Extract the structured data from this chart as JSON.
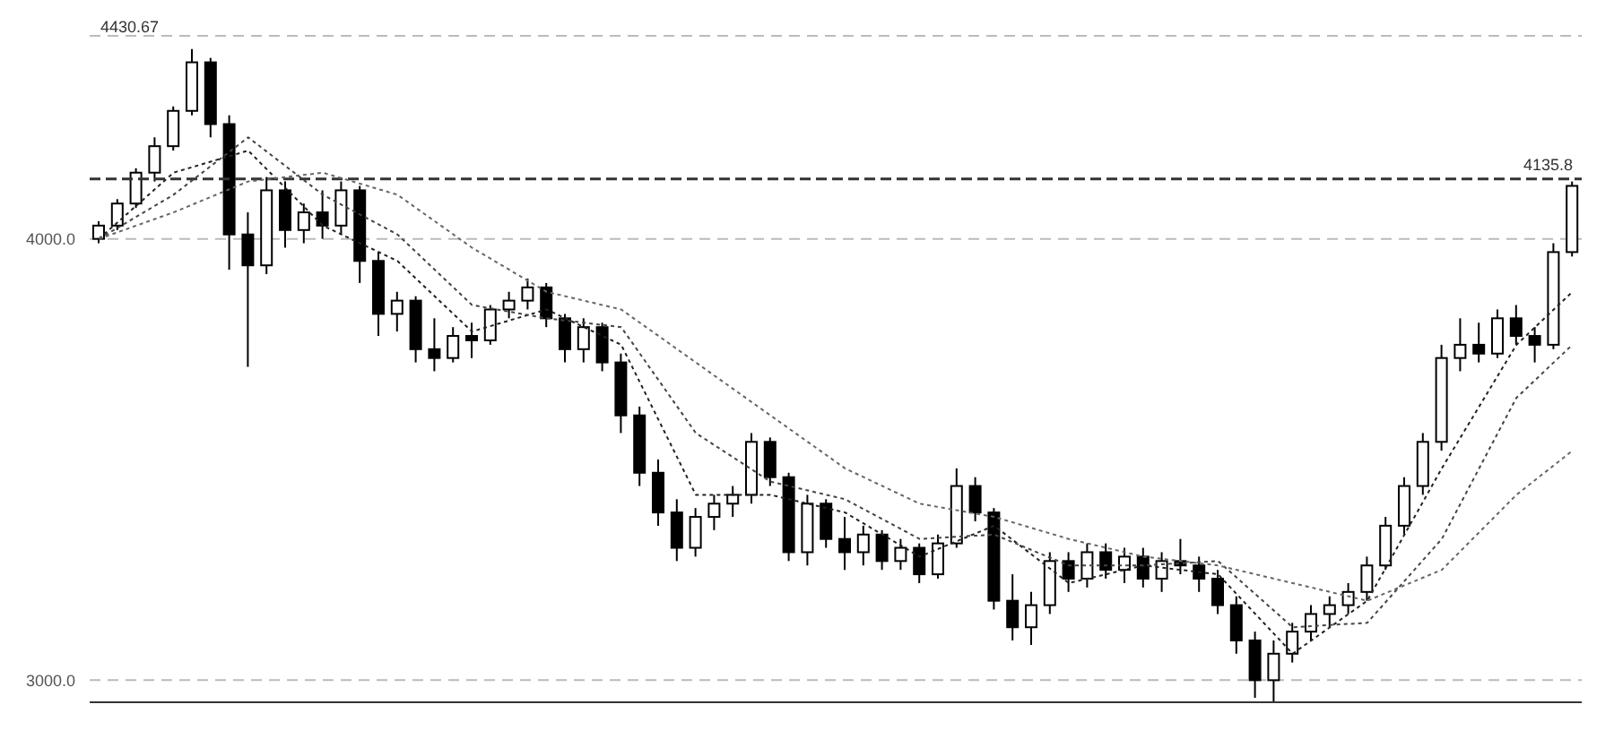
{
  "chart_data": {
    "type": "candlestick",
    "categories": [
      null,
      null,
      null,
      null,
      null,
      null,
      null,
      null,
      null,
      null,
      null,
      null,
      null,
      null,
      null,
      null,
      null,
      null,
      null,
      null,
      null,
      null,
      null,
      null,
      null,
      null,
      null,
      null,
      null,
      null,
      null,
      null,
      null,
      null,
      null,
      null,
      null,
      null,
      null,
      null,
      null,
      null,
      null,
      null,
      null,
      null,
      null,
      null,
      null,
      null,
      null,
      null,
      null,
      null,
      null,
      null,
      null,
      null,
      null,
      null,
      null,
      null,
      null,
      null,
      null,
      null,
      null,
      null,
      null,
      null,
      null,
      null,
      null,
      null,
      null,
      null,
      null,
      null,
      null,
      null
    ],
    "color": "#000000",
    "ohlc": [
      [
        4000,
        4040,
        3990,
        4030
      ],
      [
        4030,
        4090,
        4020,
        4080
      ],
      [
        4080,
        4160,
        4070,
        4150
      ],
      [
        4150,
        4230,
        4130,
        4210
      ],
      [
        4210,
        4300,
        4200,
        4290
      ],
      [
        4290,
        4430,
        4280,
        4400
      ],
      [
        4400,
        4410,
        4230,
        4260
      ],
      [
        4260,
        4280,
        3930,
        4010
      ],
      [
        4010,
        4060,
        3710,
        3940
      ],
      [
        3940,
        4140,
        3920,
        4110
      ],
      [
        4110,
        4130,
        3980,
        4020
      ],
      [
        4020,
        4080,
        3990,
        4060
      ],
      [
        4060,
        4110,
        4000,
        4030
      ],
      [
        4030,
        4130,
        4010,
        4110
      ],
      [
        4110,
        4120,
        3900,
        3950
      ],
      [
        3950,
        3970,
        3780,
        3830
      ],
      [
        3830,
        3880,
        3790,
        3860
      ],
      [
        3860,
        3870,
        3720,
        3750
      ],
      [
        3750,
        3820,
        3700,
        3730
      ],
      [
        3730,
        3800,
        3720,
        3780
      ],
      [
        3780,
        3810,
        3730,
        3770
      ],
      [
        3770,
        3850,
        3760,
        3840
      ],
      [
        3840,
        3880,
        3820,
        3860
      ],
      [
        3860,
        3910,
        3840,
        3890
      ],
      [
        3890,
        3900,
        3800,
        3820
      ],
      [
        3820,
        3830,
        3720,
        3750
      ],
      [
        3750,
        3820,
        3720,
        3800
      ],
      [
        3800,
        3810,
        3700,
        3720
      ],
      [
        3720,
        3740,
        3560,
        3600
      ],
      [
        3600,
        3620,
        3440,
        3470
      ],
      [
        3470,
        3500,
        3350,
        3380
      ],
      [
        3380,
        3410,
        3270,
        3300
      ],
      [
        3300,
        3390,
        3280,
        3370
      ],
      [
        3370,
        3420,
        3340,
        3400
      ],
      [
        3400,
        3440,
        3370,
        3420
      ],
      [
        3420,
        3560,
        3400,
        3540
      ],
      [
        3540,
        3550,
        3440,
        3460
      ],
      [
        3460,
        3470,
        3270,
        3290
      ],
      [
        3290,
        3420,
        3260,
        3400
      ],
      [
        3400,
        3410,
        3300,
        3320
      ],
      [
        3320,
        3370,
        3250,
        3290
      ],
      [
        3290,
        3350,
        3260,
        3330
      ],
      [
        3330,
        3340,
        3250,
        3270
      ],
      [
        3270,
        3320,
        3250,
        3300
      ],
      [
        3300,
        3310,
        3220,
        3240
      ],
      [
        3240,
        3330,
        3230,
        3310
      ],
      [
        3310,
        3480,
        3300,
        3440
      ],
      [
        3440,
        3460,
        3360,
        3380
      ],
      [
        3380,
        3390,
        3160,
        3180
      ],
      [
        3180,
        3240,
        3090,
        3120
      ],
      [
        3120,
        3200,
        3080,
        3170
      ],
      [
        3170,
        3290,
        3150,
        3270
      ],
      [
        3270,
        3290,
        3200,
        3230
      ],
      [
        3230,
        3310,
        3210,
        3290
      ],
      [
        3290,
        3310,
        3230,
        3250
      ],
      [
        3250,
        3300,
        3220,
        3280
      ],
      [
        3280,
        3300,
        3210,
        3230
      ],
      [
        3230,
        3290,
        3200,
        3270
      ],
      [
        3270,
        3320,
        3240,
        3260
      ],
      [
        3260,
        3280,
        3200,
        3230
      ],
      [
        3230,
        3250,
        3150,
        3170
      ],
      [
        3170,
        3190,
        3060,
        3090
      ],
      [
        3090,
        3110,
        2960,
        3000
      ],
      [
        3000,
        3090,
        2950,
        3060
      ],
      [
        3060,
        3130,
        3040,
        3110
      ],
      [
        3110,
        3170,
        3090,
        3150
      ],
      [
        3150,
        3190,
        3120,
        3170
      ],
      [
        3170,
        3220,
        3150,
        3200
      ],
      [
        3200,
        3280,
        3180,
        3260
      ],
      [
        3260,
        3370,
        3250,
        3350
      ],
      [
        3350,
        3460,
        3330,
        3440
      ],
      [
        3440,
        3560,
        3420,
        3540
      ],
      [
        3540,
        3760,
        3520,
        3730
      ],
      [
        3730,
        3820,
        3700,
        3760
      ],
      [
        3760,
        3810,
        3720,
        3740
      ],
      [
        3740,
        3840,
        3730,
        3820
      ],
      [
        3820,
        3850,
        3760,
        3780
      ],
      [
        3780,
        3800,
        3720,
        3760
      ],
      [
        3760,
        3990,
        3750,
        3970
      ],
      [
        3970,
        4130,
        3960,
        4120
      ]
    ],
    "series": [
      {
        "type": "line",
        "color": "#222222",
        "values": [
          4000,
          null,
          null,
          null,
          4150,
          null,
          null,
          null,
          4200,
          null,
          null,
          null,
          4030,
          null,
          null,
          null,
          3950,
          null,
          null,
          null,
          3790,
          null,
          null,
          null,
          3840,
          null,
          null,
          null,
          3760,
          null,
          null,
          null,
          3420,
          null,
          null,
          null,
          3420,
          null,
          null,
          null,
          3380,
          null,
          null,
          null,
          3280,
          null,
          null,
          null,
          3350,
          null,
          null,
          null,
          3220,
          null,
          null,
          null,
          3260,
          null,
          null,
          null,
          3240,
          null,
          null,
          null,
          3060,
          null,
          null,
          null,
          3180,
          null,
          null,
          null,
          3480,
          null,
          null,
          null,
          3760,
          null,
          null,
          3880
        ]
      },
      {
        "type": "line",
        "color": "#444444",
        "values": [
          4000,
          null,
          null,
          null,
          4100,
          null,
          null,
          null,
          4230,
          null,
          null,
          null,
          4100,
          null,
          null,
          null,
          4010,
          null,
          null,
          null,
          3850,
          null,
          null,
          null,
          3820,
          null,
          null,
          null,
          3800,
          null,
          null,
          null,
          3560,
          null,
          null,
          null,
          3450,
          null,
          null,
          null,
          3410,
          null,
          null,
          null,
          3320,
          null,
          null,
          null,
          3330,
          null,
          null,
          null,
          3260,
          null,
          null,
          null,
          3260,
          null,
          null,
          null,
          3270,
          null,
          null,
          null,
          3120,
          null,
          null,
          null,
          3130,
          null,
          null,
          null,
          3320,
          null,
          null,
          null,
          3640,
          null,
          null,
          3760
        ]
      },
      {
        "type": "line",
        "color": "#666666",
        "values": [
          4000,
          null,
          null,
          null,
          4060,
          null,
          null,
          null,
          4130,
          null,
          null,
          null,
          4150,
          null,
          null,
          null,
          4100,
          null,
          null,
          null,
          3980,
          null,
          null,
          null,
          3880,
          null,
          null,
          null,
          3840,
          null,
          null,
          null,
          3720,
          null,
          null,
          null,
          3600,
          null,
          null,
          null,
          3480,
          null,
          null,
          null,
          3400,
          null,
          null,
          null,
          3370,
          null,
          null,
          null,
          3320,
          null,
          null,
          null,
          3280,
          null,
          null,
          null,
          3260,
          null,
          null,
          null,
          3220,
          null,
          null,
          null,
          3180,
          null,
          null,
          null,
          3250,
          null,
          null,
          null,
          3420,
          null,
          null,
          3520
        ]
      }
    ],
    "ylim": [
      2950,
      4460
    ],
    "yticks": [
      {
        "value": 4000,
        "label": "4000.0"
      },
      {
        "value": 3000,
        "label": "3000.0"
      }
    ],
    "ref_lines": [
      {
        "axis": "y",
        "value": 4135.8,
        "label": "4135.8",
        "color": "#333333",
        "line_style": "dashed"
      }
    ],
    "annotations": [
      "4430.67"
    ],
    "grid": "y",
    "line_style": "dotted",
    "marker": "none"
  }
}
